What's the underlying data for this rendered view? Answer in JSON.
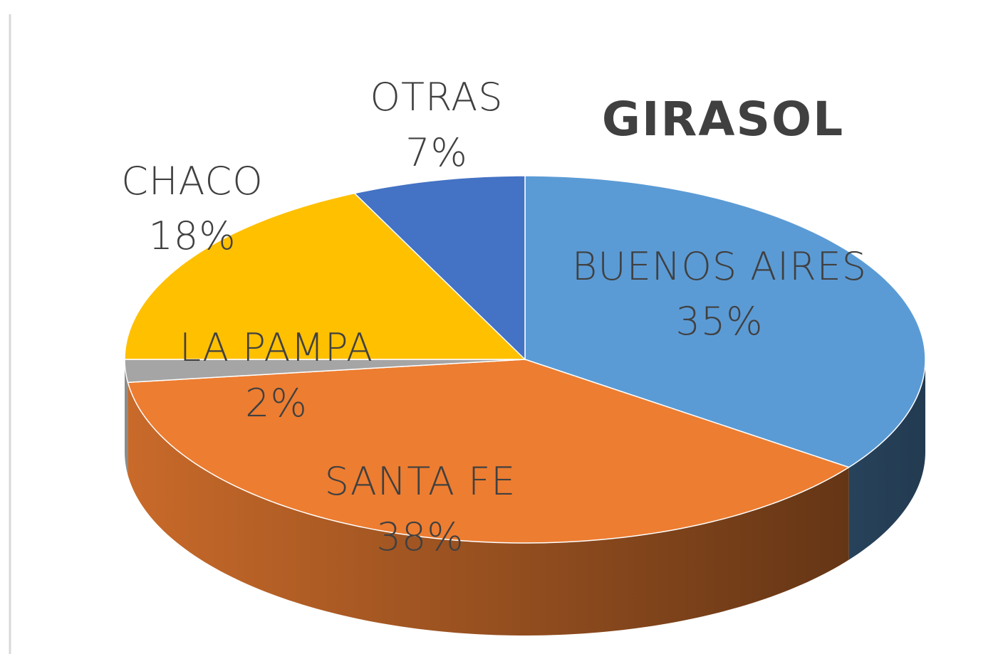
{
  "chart_data": {
    "type": "pie",
    "title": "GIRASOL",
    "categories": [
      "BUENOS AIRES",
      "SANTA FE",
      "LA PAMPA",
      "CHACO",
      "OTRAS"
    ],
    "values": [
      35,
      38,
      2,
      18,
      7
    ],
    "value_labels": [
      "35%",
      "38%",
      "2%",
      "18%",
      "7%"
    ],
    "colors": [
      "#5b9bd5",
      "#ed7d31",
      "#a5a5a5",
      "#ffc000",
      "#4472c4"
    ]
  }
}
